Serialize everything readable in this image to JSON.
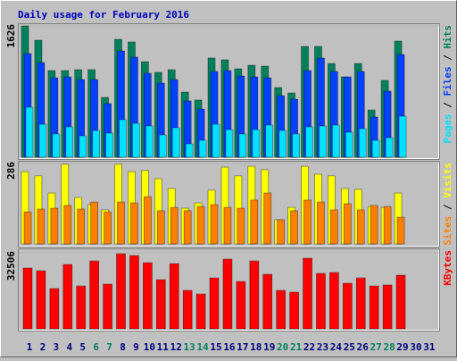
{
  "chart_data": {
    "type": "bar",
    "title": "Daily usage for February 2016",
    "categories": [
      "1",
      "2",
      "3",
      "4",
      "5",
      "6",
      "7",
      "8",
      "9",
      "10",
      "11",
      "12",
      "13",
      "14",
      "15",
      "16",
      "17",
      "18",
      "19",
      "20",
      "21",
      "22",
      "23",
      "24",
      "25",
      "26",
      "27",
      "28",
      "29",
      "30",
      "31"
    ],
    "category_colors": [
      "#000080",
      "#000080",
      "#000080",
      "#000080",
      "#000080",
      "#00805c",
      "#00805c",
      "#000080",
      "#000080",
      "#000080",
      "#000080",
      "#000080",
      "#00805c",
      "#00805c",
      "#000080",
      "#000080",
      "#000080",
      "#000080",
      "#000080",
      "#00805c",
      "#00805c",
      "#000080",
      "#000080",
      "#000080",
      "#000080",
      "#000080",
      "#00805c",
      "#00805c",
      "#000080",
      "#000080",
      "#000080"
    ],
    "legend_separator": " / ",
    "panels": [
      {
        "ylim": [
          0,
          1626
        ],
        "yticks": [
          1626
        ],
        "series": [
          {
            "name": "Hits",
            "color": "#00805c",
            "values": [
              1626,
              1449,
              1073,
              1073,
              1084,
              1084,
              741,
              1460,
              1427,
              1183,
              1051,
              1084,
              807,
              708,
              1228,
              1206,
              1095,
              1139,
              1128,
              863,
              796,
              1372,
              1372,
              1161,
              995,
              1161,
              586,
              951,
              1438,
              null,
              null
            ]
          },
          {
            "name": "Files",
            "color": "#0040ff",
            "values": [
              1283,
              1172,
              984,
              995,
              962,
              962,
              664,
              1316,
              1239,
              1040,
              918,
              962,
              697,
              597,
              1062,
              1073,
              1006,
              995,
              984,
              763,
              719,
              1073,
              1228,
              1062,
              995,
              1062,
              498,
              818,
              1272,
              null,
              null
            ]
          },
          {
            "name": "Pages",
            "color": "#00e0ff",
            "values": [
              619,
              409,
              288,
              376,
              265,
              332,
              299,
              465,
              420,
              387,
              277,
              365,
              166,
              210,
              409,
              343,
              288,
              343,
              398,
              332,
              288,
              376,
              387,
              398,
              310,
              354,
              210,
              243,
              509,
              null,
              null
            ]
          }
        ]
      },
      {
        "ylim": [
          0,
          286
        ],
        "yticks": [
          286
        ],
        "series": [
          {
            "name": "Visits",
            "color": "#ffff00",
            "values": [
              257,
              242,
              181,
              283,
              165,
              140,
              121,
              283,
              257,
              261,
              232,
              197,
              127,
              146,
              191,
              273,
              242,
              276,
              264,
              86,
              130,
              276,
              248,
              242,
              197,
              194,
              133,
              130,
              181,
              null,
              null
            ]
          },
          {
            "name": "Sites",
            "color": "#ff8000",
            "values": [
              114,
              124,
              127,
              137,
              124,
              149,
              114,
              149,
              146,
              168,
              118,
              130,
              118,
              133,
              140,
              130,
              127,
              156,
              181,
              86,
              118,
              156,
              149,
              121,
              143,
              121,
              137,
              133,
              95,
              null,
              null
            ]
          }
        ]
      },
      {
        "ylim": [
          0,
          32506
        ],
        "yticks": [
          32506
        ],
        "series": [
          {
            "name": "KBytes",
            "color": "#ff0000",
            "values": [
              26005,
              24857,
              17209,
              27534,
              18356,
              29063,
              19121,
              32124,
              31359,
              28299,
              21033,
              27916,
              16444,
              14914,
              21797,
              29828,
              20268,
              29063,
              23327,
              16444,
              15679,
              30211,
              23710,
              24092,
              19503,
              21797,
              18356,
              18738,
              22945,
              null,
              null
            ]
          }
        ]
      }
    ]
  }
}
